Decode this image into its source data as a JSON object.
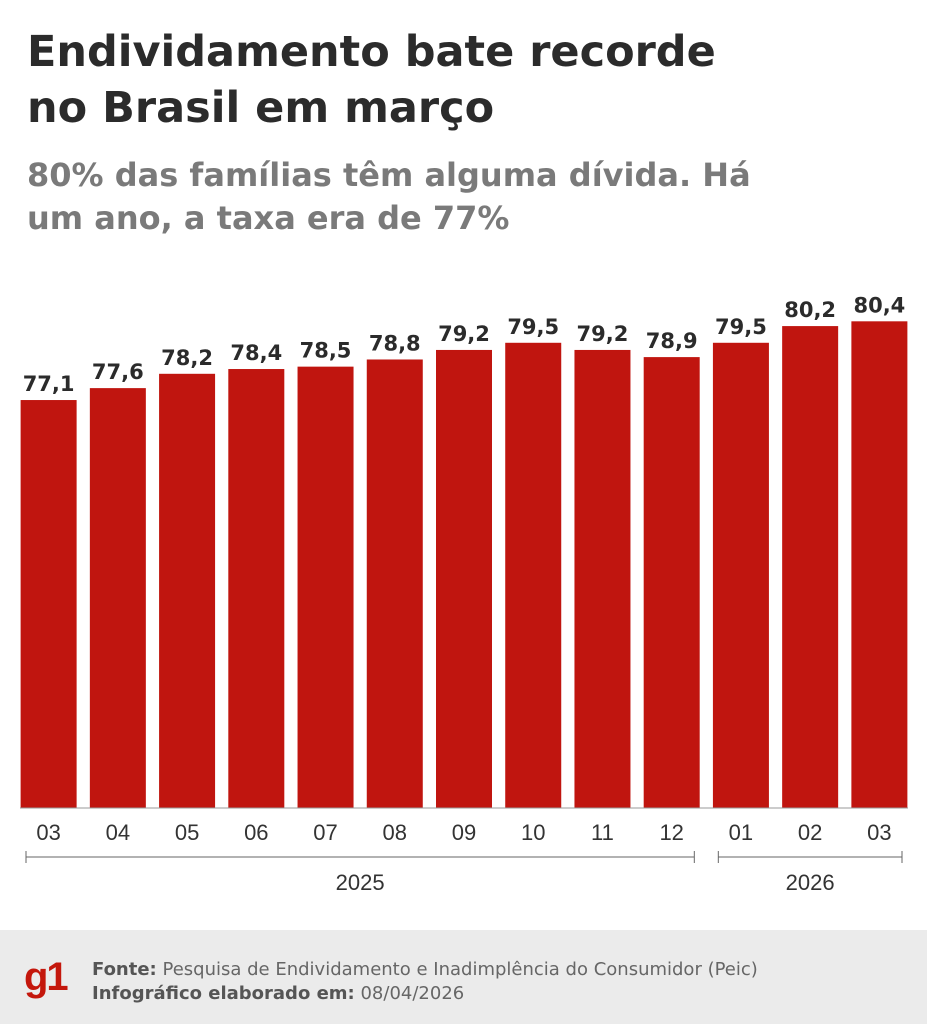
{
  "chart_data": {
    "type": "bar",
    "title": [
      "Endividamento bate recorde",
      "no Brasil em março"
    ],
    "subtitle": [
      "80% das famílias têm alguma dívida. Há",
      "um ano, a taxa era de 77%"
    ],
    "categories": [
      "03",
      "04",
      "05",
      "06",
      "07",
      "08",
      "09",
      "10",
      "11",
      "12",
      "01",
      "02",
      "03"
    ],
    "values": [
      77.1,
      77.6,
      78.2,
      78.4,
      78.5,
      78.8,
      79.2,
      79.5,
      79.2,
      78.9,
      79.5,
      80.2,
      80.4
    ],
    "value_labels": [
      "77,1",
      "77,6",
      "78,2",
      "78,4",
      "78,5",
      "78,8",
      "79,2",
      "79,5",
      "79,2",
      "78,9",
      "79,5",
      "80,2",
      "80,4"
    ],
    "color": "#c0150f",
    "ylim": [
      60,
      81
    ],
    "groups": [
      {
        "label": "2025",
        "count": 10
      },
      {
        "label": "2026",
        "count": 3
      }
    ]
  },
  "footer": {
    "logo": "g1",
    "source_label": "Fonte:",
    "source": "Pesquisa de Endividamento e Inadimplência do Consumidor (Peic)",
    "date_label": "Infográfico elaborado em:",
    "date": "08/04/2026"
  }
}
